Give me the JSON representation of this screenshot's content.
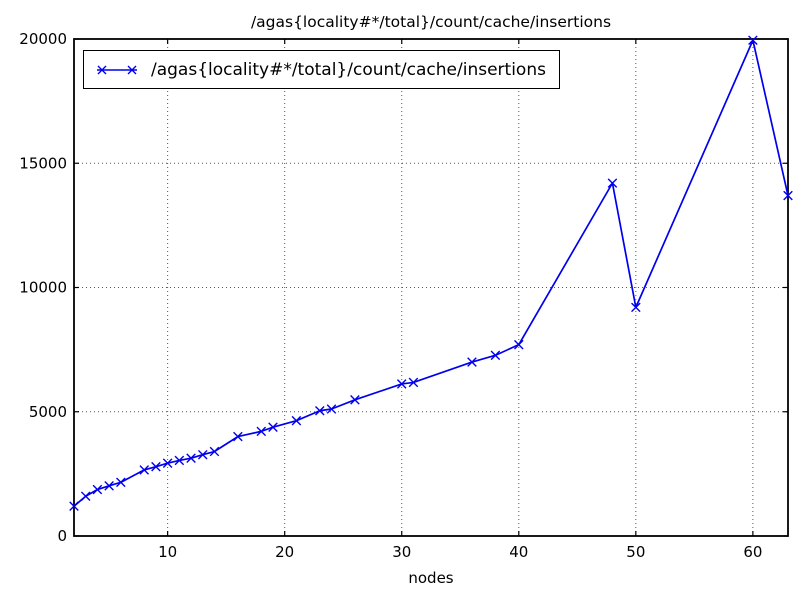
{
  "figure": {
    "background": "#ffffff",
    "frame_color": "#000000",
    "grid_color": "#555555"
  },
  "chart_data": {
    "type": "line",
    "title": "/agas{locality#*/total}/count/cache/insertions",
    "xlabel": "nodes",
    "ylabel": "",
    "xlim": [
      2,
      63
    ],
    "ylim": [
      0,
      20000
    ],
    "x_ticks": [
      10,
      20,
      30,
      40,
      50,
      60
    ],
    "y_ticks": [
      0,
      5000,
      10000,
      15000,
      20000
    ],
    "grid": "dotted",
    "legend_position": "upper left",
    "series": [
      {
        "name": "/agas{locality#*/total}/count/cache/insertions",
        "color": "#0000ee",
        "marker": "x",
        "x": [
          2,
          3,
          4,
          5,
          6,
          8,
          9,
          10,
          11,
          12,
          13,
          14,
          16,
          18,
          19,
          21,
          23,
          24,
          26,
          30,
          31,
          36,
          38,
          40,
          48,
          50,
          60,
          63
        ],
        "y": [
          1200,
          1600,
          1870,
          2020,
          2160,
          2660,
          2790,
          2930,
          3040,
          3130,
          3270,
          3400,
          4000,
          4210,
          4380,
          4640,
          5040,
          5110,
          5480,
          6120,
          6180,
          7000,
          7270,
          7700,
          14200,
          9200,
          19950,
          13700
        ]
      }
    ]
  }
}
